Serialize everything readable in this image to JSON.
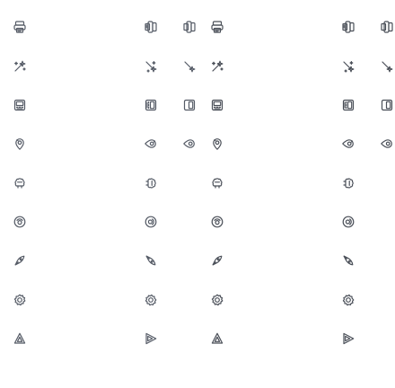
{
  "sheet": {
    "theme_color": "#555b66",
    "panels": [
      "left",
      "right"
    ]
  },
  "icons": [
    "printer-icon",
    "magic-wand-icon",
    "keyboard-icon",
    "location-pin-icon",
    "brain-chip-icon",
    "camera-lens-icon",
    "pen-nib-icon",
    "gear-flower-icon",
    "shape-triangle-icon"
  ]
}
